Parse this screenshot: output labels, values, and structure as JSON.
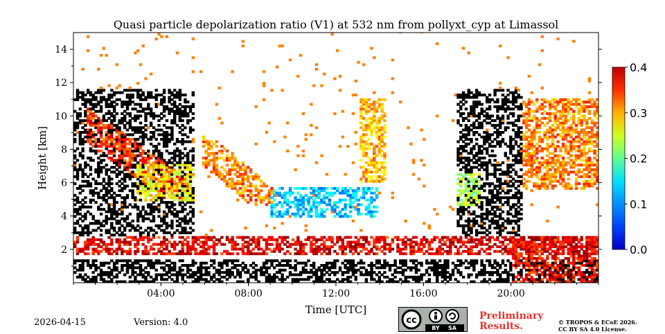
{
  "chart_data": {
    "type": "heatmap",
    "title": "Quasi particle depolarization ratio (V1) at 532 nm from pollyxt_cyp at Limassol",
    "xlabel": "Time [UTC]",
    "ylabel": "Height [km]",
    "x_range_hours": [
      0,
      24
    ],
    "xlim": [
      0,
      24
    ],
    "ylim": [
      0,
      15
    ],
    "x_ticks": [
      {
        "value": 4,
        "label": "04:00"
      },
      {
        "value": 8,
        "label": "08:00"
      },
      {
        "value": 12,
        "label": "12:00"
      },
      {
        "value": 16,
        "label": "16:00"
      },
      {
        "value": 20,
        "label": "20:00"
      }
    ],
    "y_ticks": [
      {
        "value": 2,
        "label": "2"
      },
      {
        "value": 4,
        "label": "4"
      },
      {
        "value": 6,
        "label": "6"
      },
      {
        "value": 8,
        "label": "8"
      },
      {
        "value": 10,
        "label": "10"
      },
      {
        "value": 12,
        "label": "12"
      },
      {
        "value": 14,
        "label": "14"
      }
    ],
    "colorbar": {
      "min": 0.0,
      "max": 0.4,
      "colormap": "jet",
      "ticks": [
        {
          "value": 0.0,
          "label": "0.0"
        },
        {
          "value": 0.1,
          "label": "0.1"
        },
        {
          "value": 0.2,
          "label": "0.2"
        },
        {
          "value": 0.3,
          "label": "0.3"
        },
        {
          "value": 0.4,
          "label": "0.4"
        }
      ]
    },
    "features": [
      {
        "name": "aerosol_layer_low",
        "t_start": 0.0,
        "t_end": 24.0,
        "h_bottom": 1.6,
        "h_top": 2.7,
        "value": 0.36
      },
      {
        "name": "dust_layer_morning",
        "t_start": 2.8,
        "t_end": 5.5,
        "h_bottom": 4.8,
        "h_top": 7.0,
        "value": 0.25
      },
      {
        "name": "cirrus_descending_morning",
        "t_start": 0.5,
        "t_end": 5.2,
        "h_bottom": 5.0,
        "h_top": 10.5,
        "value": 0.33
      },
      {
        "name": "cirrus_descending_forenoon",
        "t_start": 5.8,
        "t_end": 9.0,
        "h_bottom": 4.5,
        "h_top": 9.2,
        "value": 0.3
      },
      {
        "name": "ice_low_depol_midday",
        "t_start": 9.0,
        "t_end": 13.8,
        "h_bottom": 3.8,
        "h_top": 5.6,
        "value": 0.13
      },
      {
        "name": "cirrus_afternoon",
        "t_start": 13.0,
        "t_end": 14.2,
        "h_bottom": 6.0,
        "h_top": 11.0,
        "value": 0.28
      },
      {
        "name": "mixed_evening",
        "t_start": 17.5,
        "t_end": 18.5,
        "h_bottom": 4.5,
        "h_top": 6.5,
        "value": 0.22
      },
      {
        "name": "high_cloud_evening",
        "t_start": 20.5,
        "t_end": 24.0,
        "h_bottom": 5.5,
        "h_top": 11.0,
        "value": 0.3
      },
      {
        "name": "near_ground_aerosol_night",
        "t_start": 20.0,
        "t_end": 24.0,
        "h_bottom": 0.0,
        "h_top": 2.8,
        "value": 0.35
      }
    ]
  },
  "footer": {
    "date": "2026-04-15",
    "version": "Version: 4.0",
    "prelim_line1": "Preliminary",
    "prelim_line2": "Results.",
    "copyright_line1": "© TROPOS & ECoE 2026.",
    "copyright_line2": "CC BY SA 4.0 License.",
    "cc_by": "BY",
    "cc_sa": "SA"
  },
  "colors": {
    "no_signal": "#000000",
    "cc_badge": "#aab0aa",
    "preliminary_text": "#e8322c"
  }
}
